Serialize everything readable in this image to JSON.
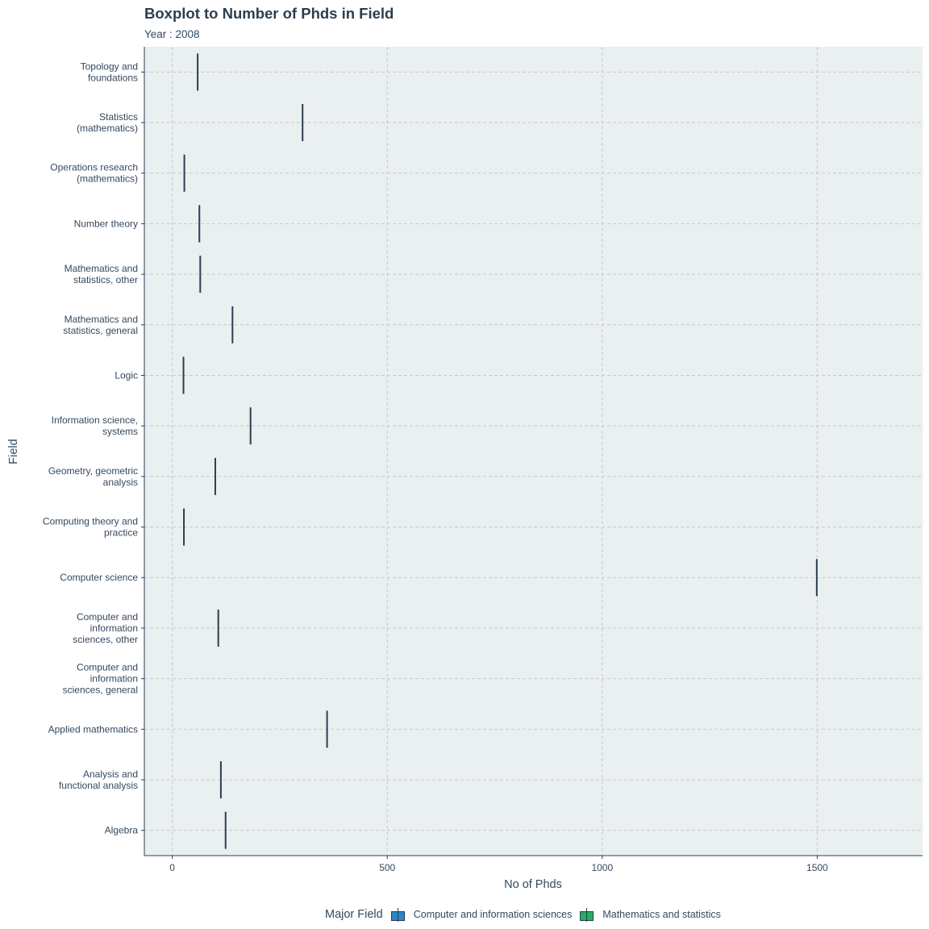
{
  "chart_data": {
    "type": "boxplot",
    "orientation": "horizontal",
    "title": "Boxplot to Number of Phds in Field",
    "subtitle": "Year : 2008",
    "xlabel": "No of Phds",
    "ylabel": "Field",
    "xlim": [
      -65,
      1745
    ],
    "x_ticks": [
      0,
      500,
      1000,
      1500
    ],
    "x_tick_labels": [
      "0",
      "500",
      "1000",
      "1500"
    ],
    "grid": true,
    "legend_position": "bottom",
    "legend_title": "Major Field",
    "legend": [
      {
        "name": "Computer and information sciences",
        "color": "#2e86c1"
      },
      {
        "name": "Mathematics and statistics",
        "color": "#27ae60"
      }
    ],
    "categories": [
      [
        "Algebra"
      ],
      [
        "Analysis and",
        "functional analysis"
      ],
      [
        "Applied mathematics"
      ],
      [
        "Computer and",
        "information",
        "sciences, general"
      ],
      [
        "Computer and",
        "information",
        "sciences, other"
      ],
      [
        "Computer science"
      ],
      [
        "Computing theory and",
        "practice"
      ],
      [
        "Geometry, geometric",
        "analysis"
      ],
      [
        "Information science,",
        "systems"
      ],
      [
        "Logic"
      ],
      [
        "Mathematics and",
        "statistics, general"
      ],
      [
        "Mathematics and",
        "statistics, other"
      ],
      [
        "Number theory"
      ],
      [
        "Operations research",
        "(mathematics)"
      ],
      [
        "Statistics",
        "(mathematics)"
      ],
      [
        "Topology and",
        "foundations"
      ]
    ],
    "values": [
      124,
      113,
      360,
      null,
      107,
      1499,
      27,
      100,
      182,
      26,
      140,
      65,
      63,
      28,
      303,
      59
    ],
    "colors": {
      "panel_background": "#eaeff0",
      "grid": "#c5cacc",
      "axis": "#2c3e50",
      "median": "#2c3e50"
    }
  }
}
